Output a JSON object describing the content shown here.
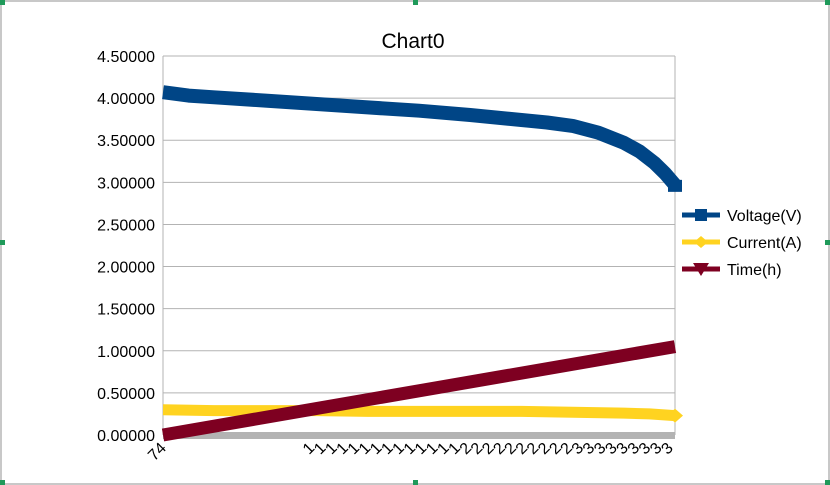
{
  "chart_data": {
    "type": "line",
    "title": "Chart0",
    "xlabel": "",
    "ylabel": "",
    "ylim": [
      0,
      4.5
    ],
    "y_ticks": [
      "0.00000",
      "0.50000",
      "1.00000",
      "1.50000",
      "2.00000",
      "2.50000",
      "3.00000",
      "3.50000",
      "4.00000",
      "4.50000"
    ],
    "x_tick_labels": {
      "first": "74",
      "crowded": [
        "1",
        "1",
        "1",
        "1",
        "1",
        "1",
        "1",
        "1",
        "1",
        "1",
        "1",
        "1",
        "1",
        "1",
        "2",
        "2",
        "2",
        "2",
        "2",
        "2",
        "2",
        "2",
        "2",
        "2",
        "3",
        "3",
        "3",
        "3",
        "3",
        "3",
        "3",
        "3",
        "3"
      ]
    },
    "grid": true,
    "legend_position": "right",
    "series": [
      {
        "name": "Voltage(V)",
        "color": "#004586",
        "marker": "square",
        "x": [
          0,
          0.05,
          0.1,
          0.2,
          0.3,
          0.4,
          0.5,
          0.6,
          0.7,
          0.75,
          0.8,
          0.85,
          0.9,
          0.93,
          0.96,
          0.98,
          1.0
        ],
        "values": [
          4.07,
          4.03,
          4.01,
          3.97,
          3.93,
          3.89,
          3.85,
          3.8,
          3.74,
          3.71,
          3.67,
          3.59,
          3.47,
          3.37,
          3.23,
          3.11,
          2.97
        ]
      },
      {
        "name": "Current(A)",
        "color": "#ffd320",
        "marker": "diamond",
        "x": [
          0,
          0.1,
          0.2,
          0.3,
          0.4,
          0.5,
          0.6,
          0.7,
          0.8,
          0.9,
          0.95,
          1.0
        ],
        "values": [
          0.3,
          0.29,
          0.29,
          0.29,
          0.28,
          0.28,
          0.28,
          0.28,
          0.27,
          0.26,
          0.25,
          0.23
        ]
      },
      {
        "name": "Time(h)",
        "color": "#7e0021",
        "marker": "triangle-down",
        "x": [
          0,
          1.0
        ],
        "values": [
          0.0,
          1.05
        ]
      }
    ]
  }
}
